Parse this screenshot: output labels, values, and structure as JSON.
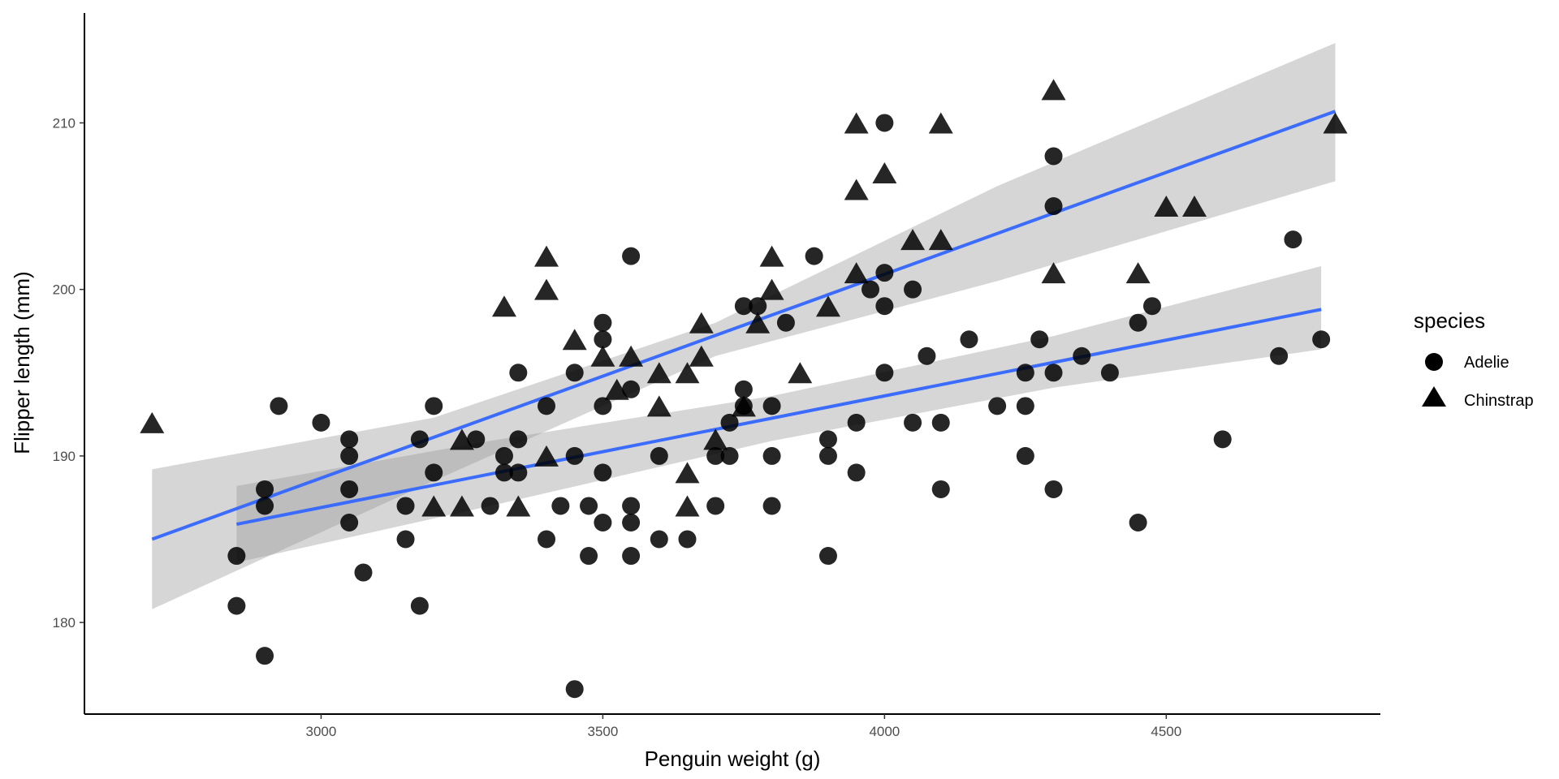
{
  "chart_data": {
    "type": "scatter",
    "xlabel": "Penguin weight (g)",
    "ylabel": "Flipper length (mm)",
    "xlim": [
      2580,
      4880
    ],
    "ylim": [
      174.5,
      216.6
    ],
    "x_ticks": [
      3000,
      3500,
      4000,
      4500
    ],
    "y_ticks": [
      180,
      190,
      200,
      210
    ],
    "grid": false,
    "legend": {
      "title": "species",
      "placement": "right",
      "entries": [
        "Adelie",
        "Chinstrap"
      ]
    },
    "colors": {
      "points": "#000000",
      "fit_line": "#3366ff",
      "ribbon": "#999999"
    },
    "series": [
      {
        "name": "Adelie",
        "shape": "circle",
        "points": [
          [
            2850,
            181
          ],
          [
            2850,
            184
          ],
          [
            2900,
            178
          ],
          [
            2900,
            188
          ],
          [
            2900,
            187
          ],
          [
            2925,
            193
          ],
          [
            3000,
            192
          ],
          [
            3050,
            191
          ],
          [
            3050,
            190
          ],
          [
            3050,
            188
          ],
          [
            3050,
            186
          ],
          [
            3075,
            183
          ],
          [
            3150,
            187
          ],
          [
            3150,
            185
          ],
          [
            3175,
            181
          ],
          [
            3175,
            191
          ],
          [
            3200,
            193
          ],
          [
            3200,
            189
          ],
          [
            3275,
            191
          ],
          [
            3300,
            187
          ],
          [
            3325,
            190
          ],
          [
            3325,
            189
          ],
          [
            3350,
            195
          ],
          [
            3350,
            191
          ],
          [
            3350,
            189
          ],
          [
            3400,
            193
          ],
          [
            3400,
            185
          ],
          [
            3425,
            187
          ],
          [
            3450,
            195
          ],
          [
            3450,
            190
          ],
          [
            3450,
            176
          ],
          [
            3475,
            187
          ],
          [
            3475,
            184
          ],
          [
            3500,
            198
          ],
          [
            3500,
            197
          ],
          [
            3500,
            193
          ],
          [
            3500,
            189
          ],
          [
            3500,
            186
          ],
          [
            3550,
            202
          ],
          [
            3550,
            194
          ],
          [
            3550,
            187
          ],
          [
            3550,
            186
          ],
          [
            3550,
            184
          ],
          [
            3600,
            190
          ],
          [
            3600,
            185
          ],
          [
            3650,
            185
          ],
          [
            3700,
            190
          ],
          [
            3700,
            187
          ],
          [
            3725,
            190
          ],
          [
            3725,
            192
          ],
          [
            3750,
            199
          ],
          [
            3750,
            194
          ],
          [
            3750,
            193
          ],
          [
            3775,
            199
          ],
          [
            3800,
            193
          ],
          [
            3800,
            190
          ],
          [
            3800,
            187
          ],
          [
            3825,
            198
          ],
          [
            3875,
            202
          ],
          [
            3900,
            191
          ],
          [
            3900,
            190
          ],
          [
            3900,
            184
          ],
          [
            3950,
            192
          ],
          [
            3950,
            189
          ],
          [
            3975,
            200
          ],
          [
            4000,
            210
          ],
          [
            4000,
            201
          ],
          [
            4000,
            199
          ],
          [
            4000,
            195
          ],
          [
            4050,
            200
          ],
          [
            4050,
            192
          ],
          [
            4075,
            196
          ],
          [
            4100,
            192
          ],
          [
            4100,
            188
          ],
          [
            4150,
            197
          ],
          [
            4200,
            193
          ],
          [
            4250,
            195
          ],
          [
            4250,
            193
          ],
          [
            4250,
            190
          ],
          [
            4275,
            197
          ],
          [
            4300,
            208
          ],
          [
            4300,
            205
          ],
          [
            4300,
            195
          ],
          [
            4300,
            188
          ],
          [
            4350,
            196
          ],
          [
            4400,
            195
          ],
          [
            4450,
            198
          ],
          [
            4450,
            186
          ],
          [
            4475,
            199
          ],
          [
            4600,
            191
          ],
          [
            4700,
            196
          ],
          [
            4725,
            203
          ],
          [
            4775,
            197
          ]
        ],
        "fit": {
          "x": [
            2850,
            4775
          ],
          "y": [
            185.9,
            198.8
          ]
        },
        "ribbon": {
          "x": [
            2850,
            3300,
            3800,
            4300,
            4775
          ],
          "lower": [
            183.6,
            187.0,
            190.9,
            194.1,
            196.4
          ],
          "upper": [
            188.2,
            190.9,
            193.6,
            197.2,
            201.4
          ]
        }
      },
      {
        "name": "Chinstrap",
        "shape": "triangle",
        "points": [
          [
            2700,
            192
          ],
          [
            3200,
            187
          ],
          [
            3250,
            191
          ],
          [
            3250,
            187
          ],
          [
            3325,
            199
          ],
          [
            3350,
            187
          ],
          [
            3400,
            202
          ],
          [
            3400,
            200
          ],
          [
            3400,
            190
          ],
          [
            3450,
            197
          ],
          [
            3500,
            196
          ],
          [
            3525,
            194
          ],
          [
            3550,
            196
          ],
          [
            3600,
            195
          ],
          [
            3600,
            193
          ],
          [
            3650,
            195
          ],
          [
            3650,
            189
          ],
          [
            3650,
            187
          ],
          [
            3675,
            198
          ],
          [
            3675,
            196
          ],
          [
            3700,
            191
          ],
          [
            3750,
            193
          ],
          [
            3775,
            198
          ],
          [
            3800,
            202
          ],
          [
            3800,
            200
          ],
          [
            3850,
            195
          ],
          [
            3900,
            199
          ],
          [
            3950,
            210
          ],
          [
            3950,
            206
          ],
          [
            3950,
            201
          ],
          [
            4000,
            207
          ],
          [
            4050,
            203
          ],
          [
            4100,
            210
          ],
          [
            4100,
            203
          ],
          [
            4300,
            212
          ],
          [
            4300,
            201
          ],
          [
            4450,
            201
          ],
          [
            4500,
            205
          ],
          [
            4550,
            205
          ],
          [
            4800,
            210
          ]
        ],
        "fit": {
          "x": [
            2700,
            4800
          ],
          "y": [
            185.0,
            210.7
          ]
        },
        "ribbon": {
          "x": [
            2700,
            3200,
            3700,
            4200,
            4800
          ],
          "lower": [
            180.8,
            188.5,
            196.0,
            200.5,
            206.5
          ],
          "upper": [
            189.2,
            192.3,
            198.0,
            206.2,
            214.8
          ]
        }
      }
    ]
  }
}
